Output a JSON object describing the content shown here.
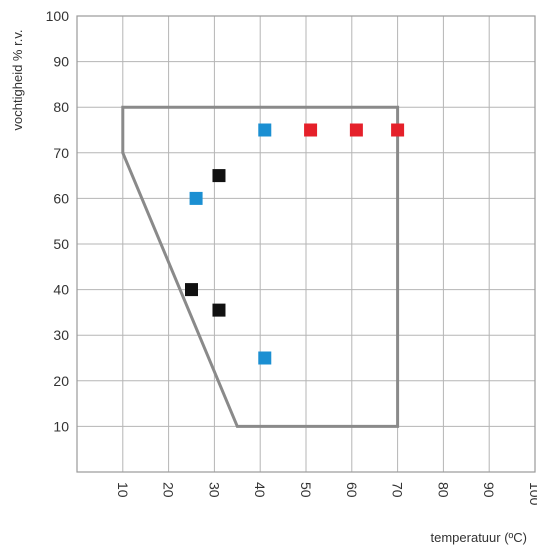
{
  "chart_data": {
    "type": "scatter",
    "title": "",
    "xlabel": "temperatuur (ºC)",
    "ylabel": "vochtigheid % r.v.",
    "xlim": [
      0,
      100
    ],
    "ylim": [
      0,
      100
    ],
    "xticks": [
      10,
      20,
      30,
      40,
      50,
      60,
      70,
      80,
      90,
      100
    ],
    "yticks": [
      10,
      20,
      30,
      40,
      50,
      60,
      70,
      80,
      90,
      100
    ],
    "grid": true,
    "legend": "none",
    "region": {
      "type": "polygon",
      "points": [
        [
          10,
          80
        ],
        [
          70,
          80
        ],
        [
          70,
          10
        ],
        [
          35,
          10
        ],
        [
          10,
          70
        ]
      ],
      "color": "#8a8a8a"
    },
    "series": [
      {
        "color": "#1b8fd2",
        "points": [
          [
            26,
            60
          ],
          [
            41,
            75
          ],
          [
            41,
            25
          ]
        ]
      },
      {
        "color": "#e5202a",
        "points": [
          [
            51,
            75
          ],
          [
            61,
            75
          ],
          [
            70,
            75
          ]
        ]
      },
      {
        "color": "#111111",
        "points": [
          [
            31,
            65
          ],
          [
            25,
            40
          ],
          [
            31,
            35.5
          ]
        ]
      }
    ]
  }
}
